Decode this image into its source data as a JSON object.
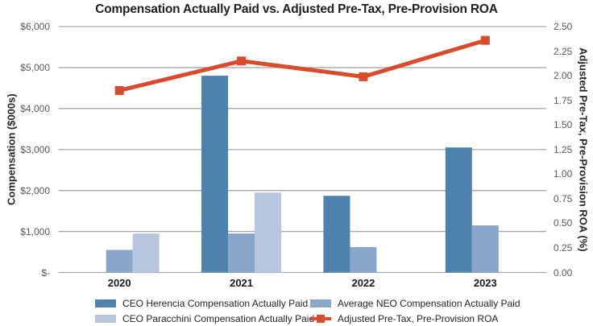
{
  "chart_data": {
    "type": "bar",
    "subtype": "grouped-bar-with-line-combo",
    "title": "Compensation Actually Paid vs. Adjusted Pre-Tax, Pre-Provision ROA",
    "categories": [
      "2020",
      "2021",
      "2022",
      "2023"
    ],
    "series": [
      {
        "name": "CEO Herencia Compensation Actually Paid",
        "type": "bar",
        "axis": "left",
        "color": "#4f81ad",
        "values": [
          null,
          4800,
          1870,
          3050
        ]
      },
      {
        "name": "Average NEO Compensation Actually Paid",
        "type": "bar",
        "axis": "left",
        "color": "#89a5c9",
        "values": [
          550,
          950,
          620,
          1150
        ]
      },
      {
        "name": "CEO Paracchini Compensation Actually Paid",
        "type": "bar",
        "axis": "left",
        "color": "#b8c5de",
        "values": [
          950,
          1950,
          null,
          null
        ]
      },
      {
        "name": "Adjusted Pre-Tax, Pre-Provision ROA",
        "type": "line",
        "axis": "right",
        "color": "#d84b2b",
        "values": [
          1.85,
          2.15,
          1.99,
          2.36
        ]
      }
    ],
    "left_axis": {
      "label": "Compensation ($000s)",
      "ticks": [
        "$6,000",
        "$5,000",
        "$4,000",
        "$3,000",
        "$2,000",
        "$1,000",
        "$-"
      ],
      "min": 0,
      "max": 6000,
      "step": 1000
    },
    "right_axis": {
      "label": "Adjusted Pre-Tax, Pre-Provision ROA (%)",
      "ticks": [
        "2.50",
        "2.25",
        "2.00",
        "1.75",
        "1.50",
        "1.25",
        "1.00",
        "0.75",
        "0.50",
        "0.25",
        "0.00"
      ],
      "min": 0,
      "max": 2.5,
      "step": 0.25
    },
    "grid": "horizontal",
    "gridline_color": "#a8a8a8",
    "legend_position": "bottom"
  }
}
